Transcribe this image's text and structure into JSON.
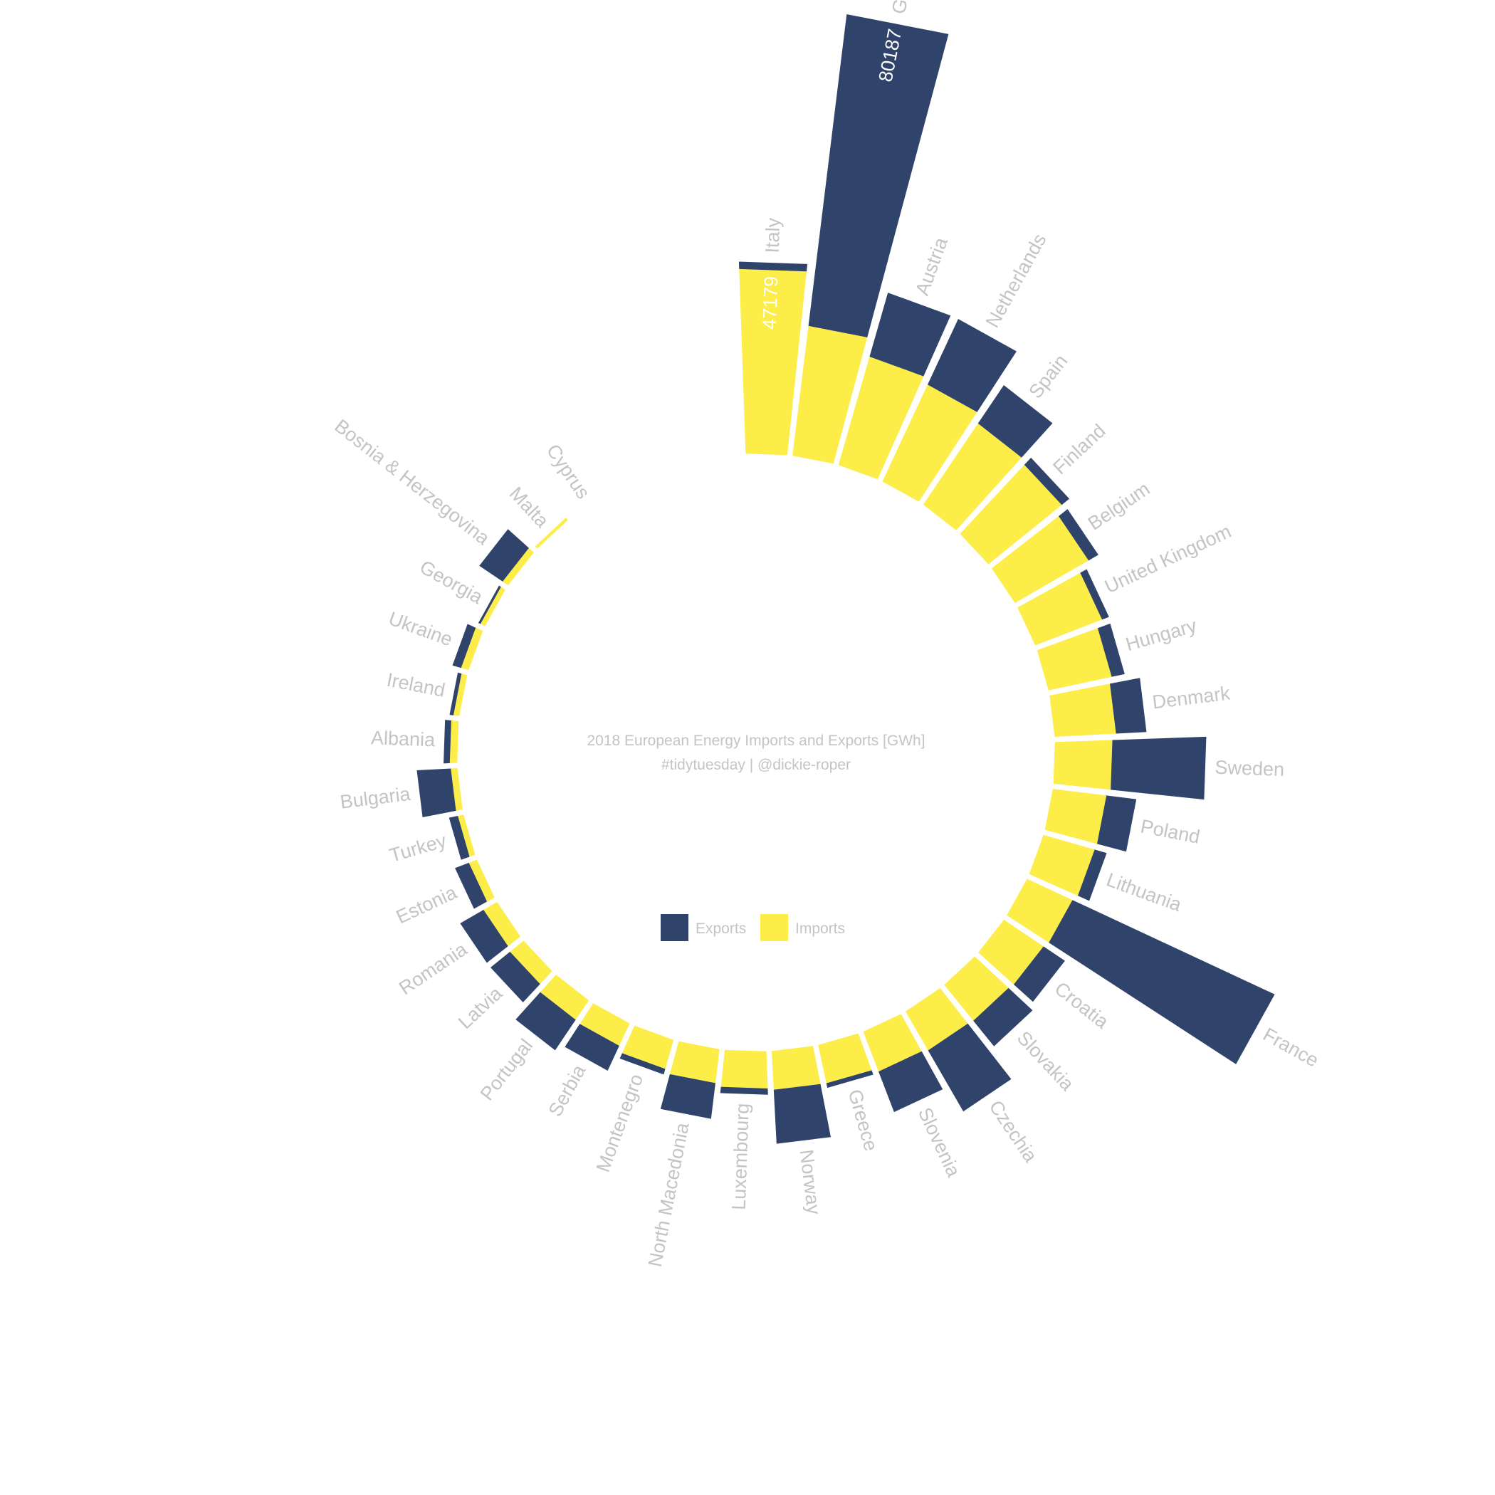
{
  "chart_data": {
    "type": "bar",
    "subtype": "circular-stacked",
    "title": "2018 European Energy Imports and Exports [GWh]",
    "subtitle": "#tidytuesday | @dickie-roper",
    "legend_position": "center",
    "grid": false,
    "series": [
      {
        "name": "Exports",
        "color": "#30436a"
      },
      {
        "name": "Imports",
        "color": "#fced48"
      }
    ],
    "categories": [
      "Italy",
      "Germany",
      "Austria",
      "Netherlands",
      "Spain",
      "Finland",
      "Belgium",
      "United Kingdom",
      "Hungary",
      "Denmark",
      "Sweden",
      "Poland",
      "Lithuania",
      "France",
      "Croatia",
      "Slovakia",
      "Czechia",
      "Slovenia",
      "Greece",
      "Norway",
      "Luxembourg",
      "North Macedonia",
      "Montenegro",
      "Serbia",
      "Portugal",
      "Latvia",
      "Romania",
      "Estonia",
      "Turkey",
      "Bulgaria",
      "Albania",
      "Ireland",
      "Ukraine",
      "Georgia",
      "Bosnia & Herzegovina",
      "Malta",
      "Cyprus"
    ],
    "imports": [
      47179,
      33400,
      28800,
      27300,
      25000,
      24100,
      21700,
      18300,
      16500,
      15700,
      14700,
      13800,
      13600,
      12800,
      12200,
      11800,
      11500,
      10900,
      10000,
      9900,
      9500,
      8700,
      7700,
      6300,
      6000,
      4500,
      4000,
      2200,
      1500,
      1700,
      1900,
      1500,
      2000,
      1300,
      1700,
      800,
      0
    ],
    "exports": [
      1900,
      80187,
      17000,
      18500,
      11800,
      2500,
      2900,
      1900,
      3400,
      7800,
      24000,
      7700,
      3200,
      57000,
      6600,
      8400,
      18000,
      11100,
      1200,
      13800,
      1600,
      9200,
      1500,
      7000,
      9400,
      6400,
      6900,
      3800,
      2300,
      8700,
      1600,
      1000,
      2300,
      600,
      7200,
      0,
      0
    ],
    "value_labels": [
      {
        "country": "Germany",
        "series": "Exports",
        "value": "80187"
      },
      {
        "country": "Italy",
        "series": "Imports",
        "value": "47179"
      }
    ]
  },
  "legend": {
    "exports_label": "Exports",
    "imports_label": "Imports"
  }
}
